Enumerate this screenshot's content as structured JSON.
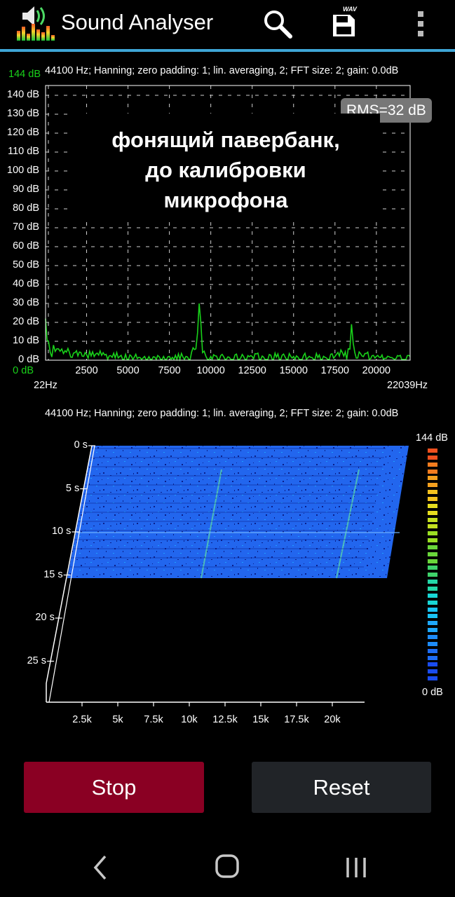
{
  "app": {
    "title": "Sound Analyser",
    "icons": [
      "speaker-levels-icon",
      "search-icon",
      "save-wav-icon",
      "more-vert-icon"
    ],
    "wav_label": "WAV",
    "accent": "#3ea6d6"
  },
  "spectrum": {
    "info": "44100 Hz; Hanning; zero padding: 1; lin. averaging, 2; FFT size: 2; gain: 0.0dB",
    "max_label": "144 dB",
    "min_label": "0 dB",
    "y_ticks": [
      "140 dB",
      "130 dB",
      "120 dB",
      "110 dB",
      "100 dB",
      "90 dB",
      "80 dB",
      "70 dB",
      "60 dB",
      "50 dB",
      "40 dB",
      "30 dB",
      "20 dB",
      "10 dB",
      "0 dB"
    ],
    "x_ticks": [
      "2500",
      "5000",
      "7500",
      "10000",
      "12500",
      "15000",
      "17500",
      "20000"
    ],
    "x_start": "22Hz",
    "x_end": "22039Hz",
    "rms": "RMS=32 dB",
    "overlay_lines": [
      "фонящий павербанк,",
      "до калибровки",
      "микрофона"
    ],
    "trace_color": "#19d11a"
  },
  "chart_data": {
    "type": "line",
    "xlabel": "",
    "ylabel": "",
    "xlim": [
      22,
      22039
    ],
    "ylim": [
      0,
      145
    ],
    "x": [
      22,
      200,
      500,
      800,
      1200,
      1800,
      2500,
      3500,
      4500,
      6000,
      7500,
      8500,
      9100,
      9300,
      9500,
      10000,
      12500,
      15000,
      17500,
      18300,
      18500,
      18700,
      20000,
      22039
    ],
    "y": [
      22,
      10,
      8,
      6,
      5,
      4,
      3,
      4,
      2,
      2,
      2,
      2,
      6,
      30,
      4,
      2,
      2,
      2,
      2,
      6,
      19,
      4,
      2,
      2
    ]
  },
  "spectrogram": {
    "info": "44100 Hz; Hanning; zero padding: 1; lin. averaging, 2; FFT size: 2; gain: 0.0dB",
    "time_ticks": [
      "0 s",
      "5 s",
      "10 s",
      "15 s",
      "20 s",
      "25 s"
    ],
    "freq_ticks": [
      "2.5k",
      "5k",
      "7.5k",
      "10k",
      "12.5k",
      "15k",
      "17.5k",
      "20k"
    ],
    "scale_max": "144 dB",
    "scale_min": "0 dB",
    "fill_color": "#1e64f0"
  },
  "controls": {
    "stop_label": "Stop",
    "reset_label": "Reset",
    "stop_color": "#8a0023",
    "reset_color": "#212428"
  },
  "nav": {
    "icons": [
      "back-icon",
      "home-icon",
      "recents-icon"
    ]
  }
}
